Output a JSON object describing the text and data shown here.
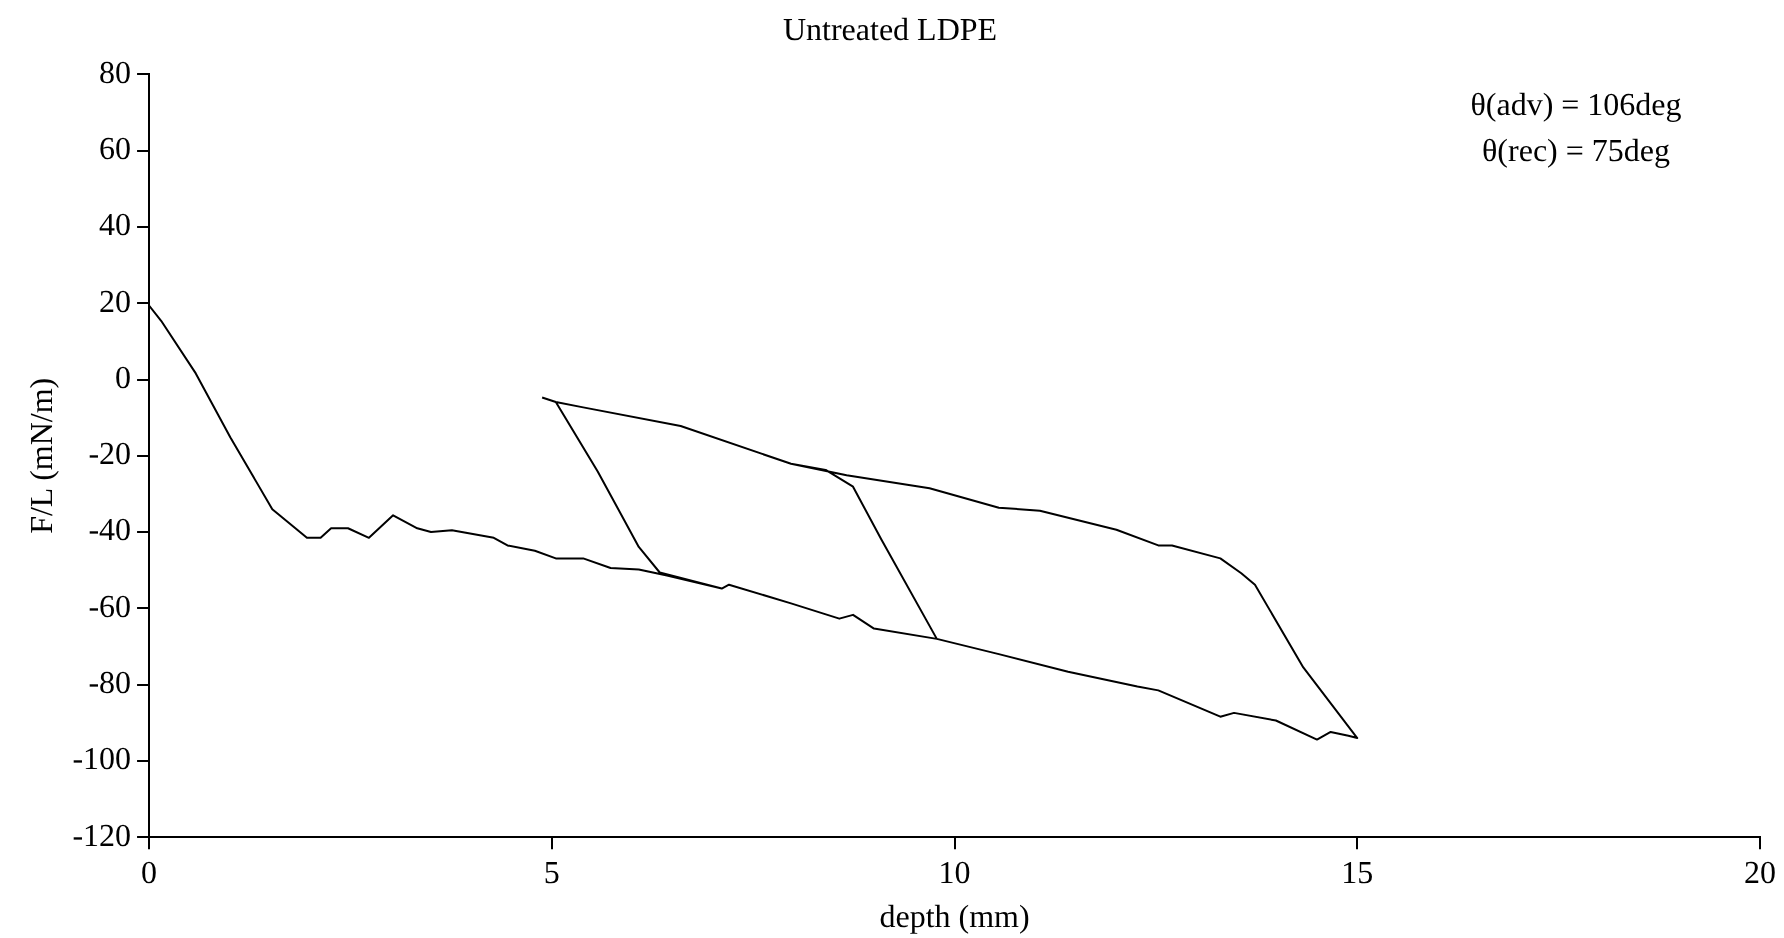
{
  "chart_data": {
    "type": "line",
    "title": "Untreated LDPE",
    "xlabel": "depth (mm)",
    "ylabel": "F/L (mN/m)",
    "x": [
      0,
      0.15,
      0.58,
      1.01,
      1.53,
      1.96,
      2.13,
      2.26,
      2.47,
      2.73,
      3.03,
      3.33,
      3.5,
      3.76,
      4.28,
      4.45,
      4.79,
      5.05,
      5.39,
      5.73,
      6.08,
      6.43,
      7.11,
      7.2,
      7.97,
      8.57,
      8.74,
      9.0,
      9.78,
      9.09,
      8.74,
      8.4,
      7.97,
      6.6,
      5.39,
      5.05,
      5.57,
      6.08,
      6.34,
      7.11,
      7.2,
      7.97,
      8.57,
      8.74,
      9.0,
      9.78,
      10.55,
      11.41,
      12.27,
      12.53,
      13.3,
      13.47,
      13.99,
      14.5,
      14.67,
      14.89,
      15.0,
      14.33,
      13.73,
      13.56,
      13.3,
      12.7,
      12.53,
      12.01,
      11.06,
      10.55,
      9.69,
      8.66,
      7.97,
      6.6,
      5.39,
      5.05,
      4.88
    ],
    "values": [
      19.4,
      15.4,
      1.6,
      -15.2,
      -34,
      -41.5,
      -41.5,
      -39,
      -39,
      -41.5,
      -35.6,
      -39,
      -40,
      -39.5,
      -41.5,
      -43.5,
      -44.9,
      -46.9,
      -46.9,
      -49.4,
      -49.8,
      -51.4,
      -54.8,
      -53.8,
      -58.7,
      -62.7,
      -61.7,
      -65.3,
      -68,
      -41.9,
      -28.1,
      -23.7,
      -22.1,
      -12.2,
      -7.3,
      -5.9,
      -24.1,
      -43.9,
      -50.6,
      -54.8,
      -53.8,
      -58.7,
      -62.7,
      -61.7,
      -65.3,
      -68,
      -72,
      -76.6,
      -80.5,
      -81.5,
      -88.4,
      -87.4,
      -89.4,
      -94.4,
      -92.4,
      -93.4,
      -94,
      -75.5,
      -53.8,
      -50.8,
      -46.9,
      -43.5,
      -43.5,
      -39.4,
      -34.4,
      -33.6,
      -28.5,
      -25.1,
      -22.1,
      -12.2,
      -7.3,
      -5.9,
      -4.7
    ],
    "color": "#000000",
    "marker": "none",
    "line_style": "solid",
    "xlim": [
      0,
      20
    ],
    "xticks": [
      0,
      5,
      10,
      15,
      20
    ],
    "ylim": [
      -120,
      80
    ],
    "yticks": [
      -120,
      -100,
      -80,
      -60,
      -40,
      -20,
      0,
      20,
      40,
      60,
      80
    ],
    "grid": false,
    "legend": false,
    "annotations": [
      "θ(adv) = 106deg",
      "θ(rec) = 75deg"
    ]
  }
}
